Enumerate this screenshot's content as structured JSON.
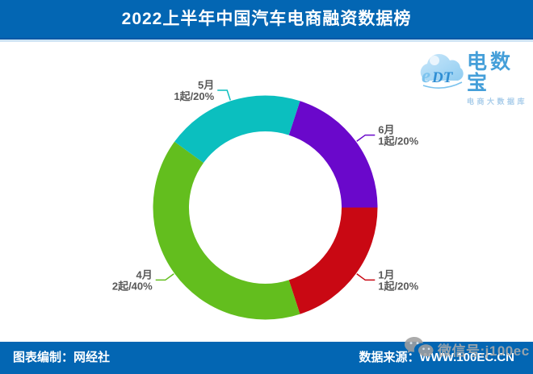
{
  "header": {
    "title": "2022上半年中国汽车电商融资数据榜",
    "background_color": "#0366b3"
  },
  "logo": {
    "mark": "eDT",
    "name": "电数宝",
    "tagline": "电商大数据库"
  },
  "chart_data": {
    "type": "pie",
    "subtype": "donut",
    "title": "2022上半年中国汽车电商融资数据榜",
    "start_angle_deg": 18,
    "inner_radius_ratio": 0.68,
    "legend": false,
    "label_format": "月份 / 起数/百分比",
    "slices": [
      {
        "label": "6月",
        "value_label": "1起/20%",
        "events": 1,
        "percent": 20,
        "color": "#6a08cb"
      },
      {
        "label": "1月",
        "value_label": "1起/20%",
        "events": 1,
        "percent": 20,
        "color": "#c90813"
      },
      {
        "label": "4月",
        "value_label": "2起/40%",
        "events": 2,
        "percent": 40,
        "color": "#63be1e"
      },
      {
        "label": "5月",
        "value_label": "1起/20%",
        "events": 1,
        "percent": 20,
        "color": "#0bbfbf"
      }
    ],
    "label_text_color": "#595959"
  },
  "footer": {
    "left": "图表编制：网经社",
    "right": "数据来源：WWW.100EC.CN",
    "background_color": "#0366b3"
  },
  "watermark": {
    "text": "微信号:j100ec"
  }
}
